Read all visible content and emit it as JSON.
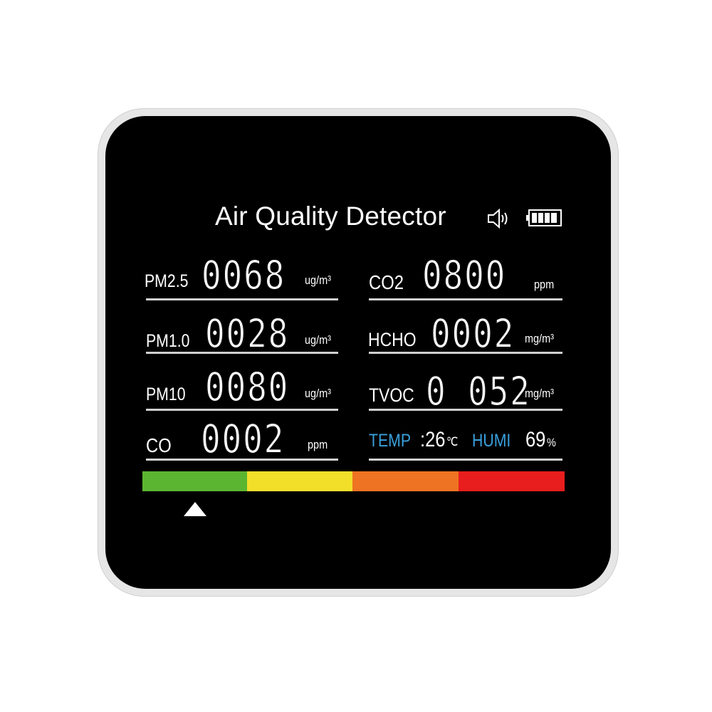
{
  "header": {
    "title": "Air Quality Detector",
    "icons": [
      "speaker-icon",
      "battery-icon"
    ]
  },
  "left": [
    {
      "label": "PM2.5",
      "value": "0068",
      "unit": "ug/m³"
    },
    {
      "label": "PM1.0",
      "value": "0028",
      "unit": "ug/m³"
    },
    {
      "label": "PM10",
      "value": "0080",
      "unit": "ug/m³"
    },
    {
      "label": "CO",
      "value": "0002",
      "unit": "ppm"
    }
  ],
  "right": [
    {
      "label": "CO2",
      "value": "0800",
      "unit": "ppm"
    },
    {
      "label": "HCHO",
      "value": "0002",
      "unit": "mg/m³"
    },
    {
      "label": "TVOC",
      "value": "0 052",
      "unit": "mg/m³"
    }
  ],
  "climate": {
    "temp_label": "TEMP",
    "temp_value": ":26",
    "temp_unit": "℃",
    "humi_label": "HUMI",
    "humi_value": "69",
    "humi_unit": "%"
  },
  "scale": {
    "colors": [
      "#5cb531",
      "#f2df2a",
      "#ee7322",
      "#e81d1d"
    ],
    "indicator_position": 0.125
  },
  "colors": {
    "accent_label": "#3aa0dc"
  }
}
